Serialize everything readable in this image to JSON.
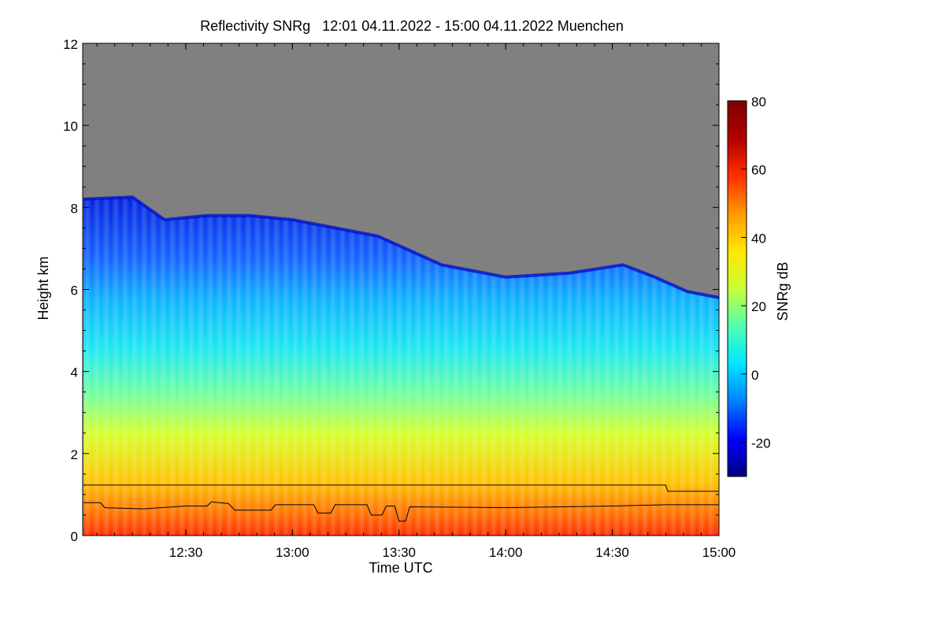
{
  "chart_data": {
    "type": "heatmap",
    "title": "Reflectivity SNRg   12:01 04.11.2022 - 15:00 04.11.2022 Muenchen",
    "xlabel": "Time UTC",
    "ylabel": "Height km",
    "colorbar_label": "SNRg dB",
    "x_range_utc": [
      "12:01",
      "15:00"
    ],
    "x_ticks": [
      {
        "t": 12.5,
        "label": "12:30"
      },
      {
        "t": 13.0,
        "label": "13:00"
      },
      {
        "t": 13.5,
        "label": "13:30"
      },
      {
        "t": 14.0,
        "label": "14:00"
      },
      {
        "t": 14.5,
        "label": "14:30"
      },
      {
        "t": 15.0,
        "label": "15:00"
      }
    ],
    "y_range_km": [
      0,
      12
    ],
    "y_ticks": [
      0,
      2,
      4,
      6,
      8,
      10,
      12
    ],
    "colorbar_range_db": [
      -30,
      80
    ],
    "colorbar_ticks": [
      -20,
      0,
      20,
      40,
      60,
      80
    ],
    "no_signal_color": "#808080",
    "colormap": [
      "#00007f",
      "#0000ff",
      "#0080ff",
      "#00e5ff",
      "#4fffb0",
      "#c8ff36",
      "#ffe600",
      "#ff9900",
      "#ff3000",
      "#b00000",
      "#7f0000"
    ],
    "cloud_top_km": [
      {
        "t": 12.02,
        "h": 8.2
      },
      {
        "t": 12.25,
        "h": 8.25
      },
      {
        "t": 12.4,
        "h": 7.7
      },
      {
        "t": 12.6,
        "h": 7.8
      },
      {
        "t": 12.8,
        "h": 7.8
      },
      {
        "t": 13.0,
        "h": 7.7
      },
      {
        "t": 13.2,
        "h": 7.5
      },
      {
        "t": 13.4,
        "h": 7.3
      },
      {
        "t": 13.7,
        "h": 6.6
      },
      {
        "t": 14.0,
        "h": 6.3
      },
      {
        "t": 14.3,
        "h": 6.4
      },
      {
        "t": 14.55,
        "h": 6.6
      },
      {
        "t": 14.7,
        "h": 6.3
      },
      {
        "t": 14.85,
        "h": 5.95
      },
      {
        "t": 15.0,
        "h": 5.8
      }
    ],
    "series": [
      {
        "values": [
          {
            "t": 12.02,
            "h": 1.23
          },
          {
            "t": 14.75,
            "h": 1.23
          },
          {
            "t": 14.76,
            "h": 1.08
          },
          {
            "t": 15.0,
            "h": 1.08
          }
        ]
      },
      {
        "values": [
          {
            "t": 12.02,
            "h": 0.8
          },
          {
            "t": 12.1,
            "h": 0.8
          },
          {
            "t": 12.12,
            "h": 0.68
          },
          {
            "t": 12.3,
            "h": 0.65
          },
          {
            "t": 12.5,
            "h": 0.72
          },
          {
            "t": 12.6,
            "h": 0.72
          },
          {
            "t": 12.62,
            "h": 0.82
          },
          {
            "t": 12.7,
            "h": 0.78
          },
          {
            "t": 12.73,
            "h": 0.62
          },
          {
            "t": 12.9,
            "h": 0.62
          },
          {
            "t": 12.92,
            "h": 0.75
          },
          {
            "t": 13.1,
            "h": 0.75
          },
          {
            "t": 13.12,
            "h": 0.55
          },
          {
            "t": 13.18,
            "h": 0.55
          },
          {
            "t": 13.2,
            "h": 0.75
          },
          {
            "t": 13.35,
            "h": 0.75
          },
          {
            "t": 13.37,
            "h": 0.5
          },
          {
            "t": 13.42,
            "h": 0.5
          },
          {
            "t": 13.44,
            "h": 0.72
          },
          {
            "t": 13.48,
            "h": 0.72
          },
          {
            "t": 13.5,
            "h": 0.35
          },
          {
            "t": 13.53,
            "h": 0.35
          },
          {
            "t": 13.55,
            "h": 0.7
          },
          {
            "t": 14.0,
            "h": 0.68
          },
          {
            "t": 14.5,
            "h": 0.72
          },
          {
            "t": 14.75,
            "h": 0.75
          },
          {
            "t": 15.0,
            "h": 0.75
          }
        ]
      }
    ]
  }
}
